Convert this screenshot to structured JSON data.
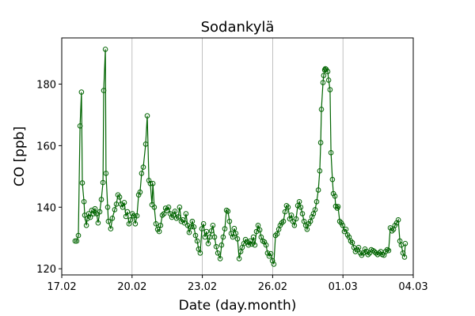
{
  "chart_data": {
    "type": "line",
    "title": "Sodankylä",
    "xlabel": "Date (day.month)",
    "ylabel": "CO [ppb]",
    "x_unit": "days since 17.02",
    "xlim": [
      0,
      15
    ],
    "ylim": [
      118,
      195
    ],
    "grid": "vertical lines at x ticks",
    "xticks": [
      {
        "value": 0,
        "label": "17.02"
      },
      {
        "value": 3,
        "label": "20.02"
      },
      {
        "value": 6,
        "label": "23.02"
      },
      {
        "value": 9,
        "label": "26.02"
      },
      {
        "value": 12,
        "label": "01.03"
      },
      {
        "value": 15,
        "label": "04.03"
      }
    ],
    "yticks": [
      {
        "value": 120,
        "label": "120"
      },
      {
        "value": 140,
        "label": "140"
      },
      {
        "value": 160,
        "label": "160"
      },
      {
        "value": 180,
        "label": "180"
      }
    ],
    "color": "#006400",
    "series": [
      {
        "name": "CO",
        "marker": "open-circle",
        "points": [
          [
            0.57,
            129.0
          ],
          [
            0.64,
            129.0
          ],
          [
            0.71,
            130.8
          ],
          [
            0.78,
            166.4
          ],
          [
            0.84,
            177.4
          ],
          [
            0.88,
            147.9
          ],
          [
            0.95,
            141.8
          ],
          [
            0.98,
            137.4
          ],
          [
            1.05,
            134.1
          ],
          [
            1.08,
            136.2
          ],
          [
            1.15,
            137.9
          ],
          [
            1.22,
            136.7
          ],
          [
            1.28,
            139.0
          ],
          [
            1.35,
            137.9
          ],
          [
            1.42,
            139.5
          ],
          [
            1.49,
            137.9
          ],
          [
            1.55,
            134.9
          ],
          [
            1.62,
            138.5
          ],
          [
            1.69,
            142.5
          ],
          [
            1.76,
            148.0
          ],
          [
            1.79,
            177.9
          ],
          [
            1.86,
            191.3
          ],
          [
            1.89,
            151.0
          ],
          [
            1.96,
            140.0
          ],
          [
            1.99,
            135.4
          ],
          [
            2.09,
            133.0
          ],
          [
            2.16,
            136.4
          ],
          [
            2.26,
            139.2
          ],
          [
            2.33,
            141.0
          ],
          [
            2.4,
            144.0
          ],
          [
            2.47,
            143.3
          ],
          [
            2.53,
            141.0
          ],
          [
            2.6,
            140.0
          ],
          [
            2.67,
            141.5
          ],
          [
            2.74,
            137.0
          ],
          [
            2.8,
            138.5
          ],
          [
            2.87,
            134.6
          ],
          [
            2.94,
            135.9
          ],
          [
            3.01,
            137.9
          ],
          [
            3.07,
            137.2
          ],
          [
            3.14,
            134.6
          ],
          [
            3.21,
            137.2
          ],
          [
            3.28,
            144.0
          ],
          [
            3.34,
            144.9
          ],
          [
            3.41,
            151.0
          ],
          [
            3.48,
            153.0
          ],
          [
            3.58,
            160.5
          ],
          [
            3.65,
            169.7
          ],
          [
            3.72,
            148.7
          ],
          [
            3.78,
            147.7
          ],
          [
            3.85,
            140.8
          ],
          [
            3.89,
            147.7
          ],
          [
            3.95,
            140.0
          ],
          [
            4.02,
            134.6
          ],
          [
            4.09,
            132.8
          ],
          [
            4.16,
            132.1
          ],
          [
            4.22,
            134.1
          ],
          [
            4.29,
            137.4
          ],
          [
            4.36,
            137.9
          ],
          [
            4.43,
            139.7
          ],
          [
            4.49,
            139.0
          ],
          [
            4.56,
            140.0
          ],
          [
            4.63,
            137.9
          ],
          [
            4.7,
            136.7
          ],
          [
            4.76,
            137.4
          ],
          [
            4.83,
            138.7
          ],
          [
            4.9,
            136.4
          ],
          [
            4.97,
            136.9
          ],
          [
            5.03,
            140.0
          ],
          [
            5.1,
            135.4
          ],
          [
            5.17,
            135.9
          ],
          [
            5.24,
            134.9
          ],
          [
            5.3,
            137.9
          ],
          [
            5.37,
            134.1
          ],
          [
            5.44,
            131.8
          ],
          [
            5.51,
            133.6
          ],
          [
            5.57,
            135.4
          ],
          [
            5.64,
            133.6
          ],
          [
            5.71,
            130.8
          ],
          [
            5.78,
            129.0
          ],
          [
            5.84,
            126.4
          ],
          [
            5.91,
            125.1
          ],
          [
            5.98,
            133.0
          ],
          [
            6.05,
            134.6
          ],
          [
            6.11,
            130.3
          ],
          [
            6.18,
            132.1
          ],
          [
            6.25,
            128.2
          ],
          [
            6.32,
            130.3
          ],
          [
            6.39,
            132.3
          ],
          [
            6.45,
            134.1
          ],
          [
            6.52,
            130.3
          ],
          [
            6.59,
            127.2
          ],
          [
            6.66,
            125.1
          ],
          [
            6.76,
            123.3
          ],
          [
            6.82,
            127.7
          ],
          [
            6.89,
            130.3
          ],
          [
            6.96,
            133.0
          ],
          [
            7.03,
            139.0
          ],
          [
            7.09,
            138.7
          ],
          [
            7.16,
            135.4
          ],
          [
            7.23,
            131.5
          ],
          [
            7.3,
            130.3
          ],
          [
            7.36,
            133.1
          ],
          [
            7.43,
            131.5
          ],
          [
            7.5,
            129.7
          ],
          [
            7.57,
            123.3
          ],
          [
            7.64,
            125.6
          ],
          [
            7.7,
            126.9
          ],
          [
            7.77,
            128.2
          ],
          [
            7.84,
            129.5
          ],
          [
            7.91,
            128.7
          ],
          [
            7.97,
            127.7
          ],
          [
            8.04,
            129.0
          ],
          [
            8.11,
            128.0
          ],
          [
            8.18,
            130.3
          ],
          [
            8.24,
            127.7
          ],
          [
            8.31,
            132.1
          ],
          [
            8.38,
            134.1
          ],
          [
            8.45,
            132.6
          ],
          [
            8.51,
            130.3
          ],
          [
            8.58,
            129.0
          ],
          [
            8.65,
            128.7
          ],
          [
            8.72,
            127.7
          ],
          [
            8.78,
            125.1
          ],
          [
            8.85,
            124.1
          ],
          [
            8.92,
            124.9
          ],
          [
            8.99,
            122.6
          ],
          [
            9.05,
            121.5
          ],
          [
            9.12,
            130.8
          ],
          [
            9.19,
            131.3
          ],
          [
            9.26,
            132.8
          ],
          [
            9.32,
            134.1
          ],
          [
            9.39,
            134.9
          ],
          [
            9.46,
            135.4
          ],
          [
            9.53,
            138.5
          ],
          [
            9.59,
            140.5
          ],
          [
            9.66,
            140.0
          ],
          [
            9.73,
            136.2
          ],
          [
            9.8,
            137.4
          ],
          [
            9.86,
            135.4
          ],
          [
            9.93,
            134.1
          ],
          [
            10.0,
            136.2
          ],
          [
            10.07,
            140.5
          ],
          [
            10.14,
            141.8
          ],
          [
            10.2,
            140.0
          ],
          [
            10.27,
            137.9
          ],
          [
            10.34,
            135.4
          ],
          [
            10.41,
            134.1
          ],
          [
            10.47,
            132.8
          ],
          [
            10.54,
            134.6
          ],
          [
            10.61,
            135.4
          ],
          [
            10.68,
            136.9
          ],
          [
            10.74,
            137.9
          ],
          [
            10.81,
            139.2
          ],
          [
            10.88,
            141.8
          ],
          [
            10.95,
            145.6
          ],
          [
            11.01,
            151.8
          ],
          [
            11.05,
            161.0
          ],
          [
            11.08,
            171.8
          ],
          [
            11.15,
            180.5
          ],
          [
            11.18,
            182.8
          ],
          [
            11.22,
            184.6
          ],
          [
            11.25,
            185.0
          ],
          [
            11.28,
            184.8
          ],
          [
            11.35,
            184.1
          ],
          [
            11.39,
            181.3
          ],
          [
            11.45,
            178.2
          ],
          [
            11.49,
            157.7
          ],
          [
            11.55,
            149.0
          ],
          [
            11.59,
            144.4
          ],
          [
            11.66,
            143.6
          ],
          [
            11.69,
            140.3
          ],
          [
            11.76,
            139.7
          ],
          [
            11.79,
            140.2
          ],
          [
            11.86,
            135.4
          ],
          [
            11.93,
            134.9
          ],
          [
            11.99,
            134.1
          ],
          [
            12.06,
            132.1
          ],
          [
            12.13,
            132.8
          ],
          [
            12.2,
            131.0
          ],
          [
            12.26,
            130.3
          ],
          [
            12.33,
            129.0
          ],
          [
            12.4,
            128.5
          ],
          [
            12.47,
            126.9
          ],
          [
            12.53,
            125.6
          ],
          [
            12.6,
            126.2
          ],
          [
            12.67,
            126.9
          ],
          [
            12.74,
            125.1
          ],
          [
            12.8,
            124.4
          ],
          [
            12.87,
            125.1
          ],
          [
            12.94,
            126.4
          ],
          [
            13.01,
            125.6
          ],
          [
            13.07,
            124.6
          ],
          [
            13.14,
            125.1
          ],
          [
            13.21,
            126.2
          ],
          [
            13.28,
            125.9
          ],
          [
            13.34,
            125.6
          ],
          [
            13.41,
            125.1
          ],
          [
            13.48,
            124.6
          ],
          [
            13.55,
            125.1
          ],
          [
            13.61,
            125.6
          ],
          [
            13.68,
            124.6
          ],
          [
            13.75,
            124.4
          ],
          [
            13.82,
            125.6
          ],
          [
            13.89,
            126.2
          ],
          [
            13.95,
            125.9
          ],
          [
            14.02,
            133.3
          ],
          [
            14.09,
            132.3
          ],
          [
            14.16,
            132.8
          ],
          [
            14.22,
            134.1
          ],
          [
            14.29,
            134.9
          ],
          [
            14.36,
            135.9
          ],
          [
            14.43,
            129.0
          ],
          [
            14.49,
            127.7
          ],
          [
            14.56,
            125.1
          ],
          [
            14.63,
            123.8
          ],
          [
            14.66,
            128.2
          ]
        ]
      }
    ]
  }
}
